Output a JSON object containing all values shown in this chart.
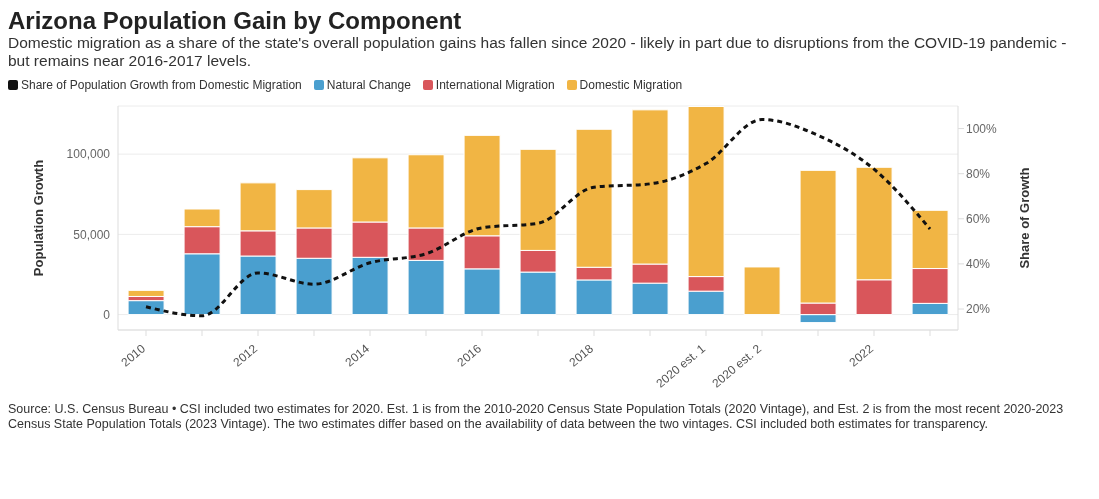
{
  "chart_data": {
    "type": "bar",
    "title": "Arizona Population Gain by Component",
    "subtitle": "Domestic migration as a share of the state's overall population gains has fallen since 2020 - likely in part due to disruptions from the COVID-19 pandemic - but remains near 2016-2017 levels.",
    "categories": [
      "2010",
      null,
      "2012",
      null,
      "2014",
      null,
      "2016",
      null,
      "2018",
      null,
      "2020 est. 1",
      "2020 est. 2",
      null,
      "2022",
      null
    ],
    "series": [
      {
        "name": "Share of Population Growth from Domestic Migration",
        "type": "line",
        "axis": "y2",
        "color": "#111111",
        "line_style": "dashed",
        "marker": "none",
        "values": [
          21,
          17,
          36,
          31,
          40.5,
          44.5,
          56,
          58,
          74,
          75.5,
          84.5,
          104,
          97,
          82,
          55.5
        ]
      },
      {
        "name": "Natural Change",
        "color": "#4a9fcf",
        "values": [
          8700,
          37900,
          36500,
          35100,
          35700,
          33800,
          28500,
          26500,
          21600,
          19600,
          14600,
          null,
          -5000,
          null,
          7000
        ]
      },
      {
        "name": "International Migration",
        "color": "#d9565b",
        "values": [
          2600,
          16900,
          15700,
          18900,
          22000,
          20200,
          20600,
          13500,
          7900,
          11900,
          9100,
          null,
          7200,
          21700,
          21700
        ]
      },
      {
        "name": "Domestic Migration",
        "color": "#f1b544",
        "values": [
          3800,
          11000,
          29900,
          23900,
          40000,
          45600,
          62600,
          63000,
          86000,
          96100,
          106000,
          29700,
          82700,
          70100,
          36300
        ]
      }
    ],
    "stacked": true,
    "ylabel": "Population Growth",
    "y2label": "Share of Growth",
    "ylim": [
      -9600,
      130000
    ],
    "yticks": [
      {
        "value": 0,
        "label": "0"
      },
      {
        "value": 50000,
        "label": "50,000"
      },
      {
        "value": 100000,
        "label": "100,000"
      }
    ],
    "y2lim": [
      10.7,
      110
    ],
    "y2ticks": [
      {
        "value": 20,
        "label": "20%"
      },
      {
        "value": 40,
        "label": "40%"
      },
      {
        "value": 60,
        "label": "60%"
      },
      {
        "value": 80,
        "label": "80%"
      },
      {
        "value": 100,
        "label": "100%"
      }
    ],
    "grid": "y",
    "legend": "top left",
    "annotations": [
      "Source: U.S. Census Bureau • CSI included two estimates for 2020. Est. 1 is from the 2010-2020 Census State Population Totals (2020 Vintage), and Est. 2 is from the most recent 2020-2023 Census State Population Totals (2023 Vintage). The two estimates differ based on the availability of data between the two vintages. CSI included both estimates for transparency."
    ]
  }
}
